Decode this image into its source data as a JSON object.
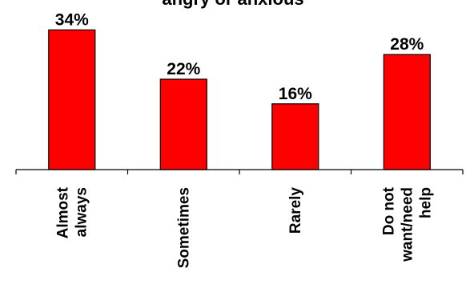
{
  "chart_data": {
    "type": "bar",
    "title": "angry or anxious",
    "categories": [
      [
        "Almost",
        "always"
      ],
      [
        "Sometimes"
      ],
      [
        "Rarely"
      ],
      [
        "Do not",
        "want/need",
        "help"
      ]
    ],
    "values": [
      34,
      22,
      16,
      28
    ],
    "data_labels": [
      "34%",
      "22%",
      "16%",
      "28%"
    ],
    "ylim": [
      0,
      37
    ],
    "grid": false,
    "legend": "none",
    "colors": {
      "bar_fill": "#ff0000",
      "bar_stroke": "#000000"
    }
  }
}
